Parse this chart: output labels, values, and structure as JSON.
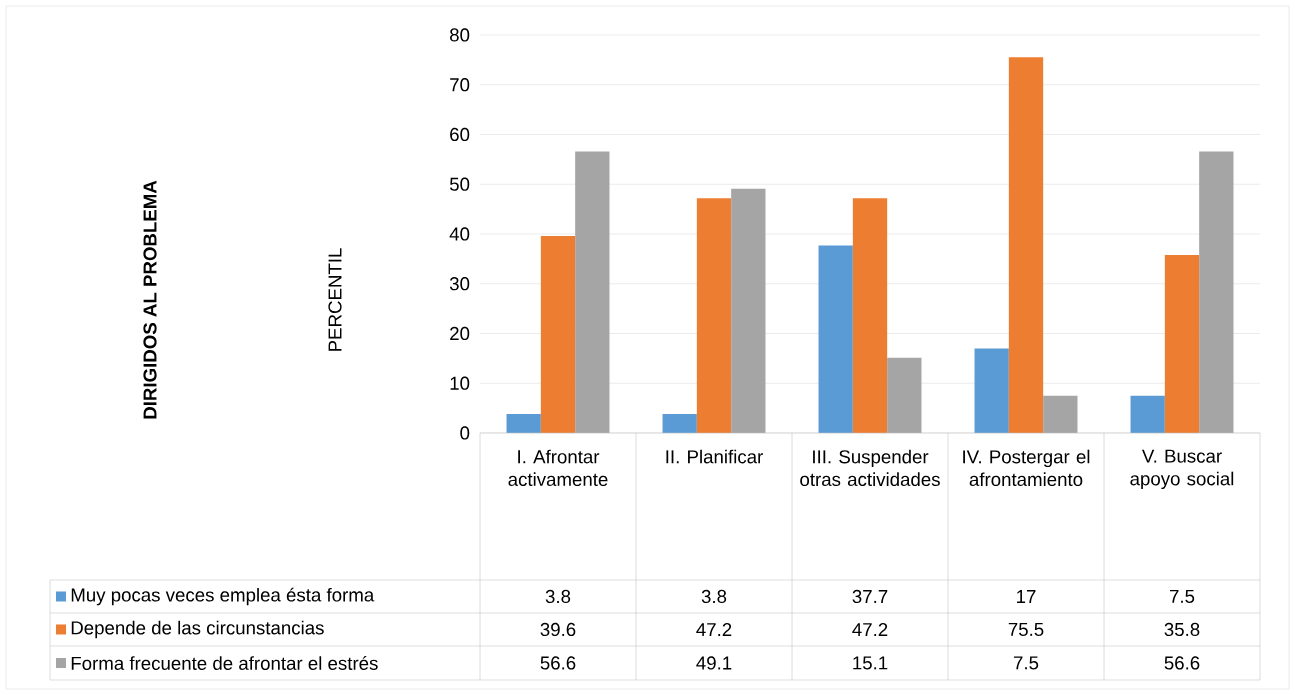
{
  "chart_data": {
    "type": "bar",
    "categories": [
      "I. Afrontar activamente",
      "II. Planificar",
      "III. Suspender otras actividades",
      "IV. Postergar el afrontamiento",
      "V. Buscar apoyo social"
    ],
    "series": [
      {
        "name": "Muy pocas veces emplea ésta forma",
        "color": "#5b9bd5",
        "values": [
          3.8,
          3.8,
          37.7,
          17,
          7.5
        ]
      },
      {
        "name": "Depende de las circunstancias",
        "color": "#ed7d31",
        "values": [
          39.6,
          47.2,
          47.2,
          75.5,
          35.8
        ]
      },
      {
        "name": "Forma frecuente de afrontar el estrés",
        "color": "#a5a5a5",
        "values": [
          56.6,
          49.1,
          15.1,
          7.5,
          56.6
        ]
      }
    ],
    "annotations": [
      "DIRIGIDOS AL PROBLEMA",
      "PERCENTIL"
    ],
    "ylim": [
      0,
      80
    ],
    "yticks": [
      0,
      10,
      20,
      30,
      40,
      50,
      60,
      70,
      80
    ],
    "grid": "y",
    "legend": "bottom",
    "data_labels": true
  }
}
